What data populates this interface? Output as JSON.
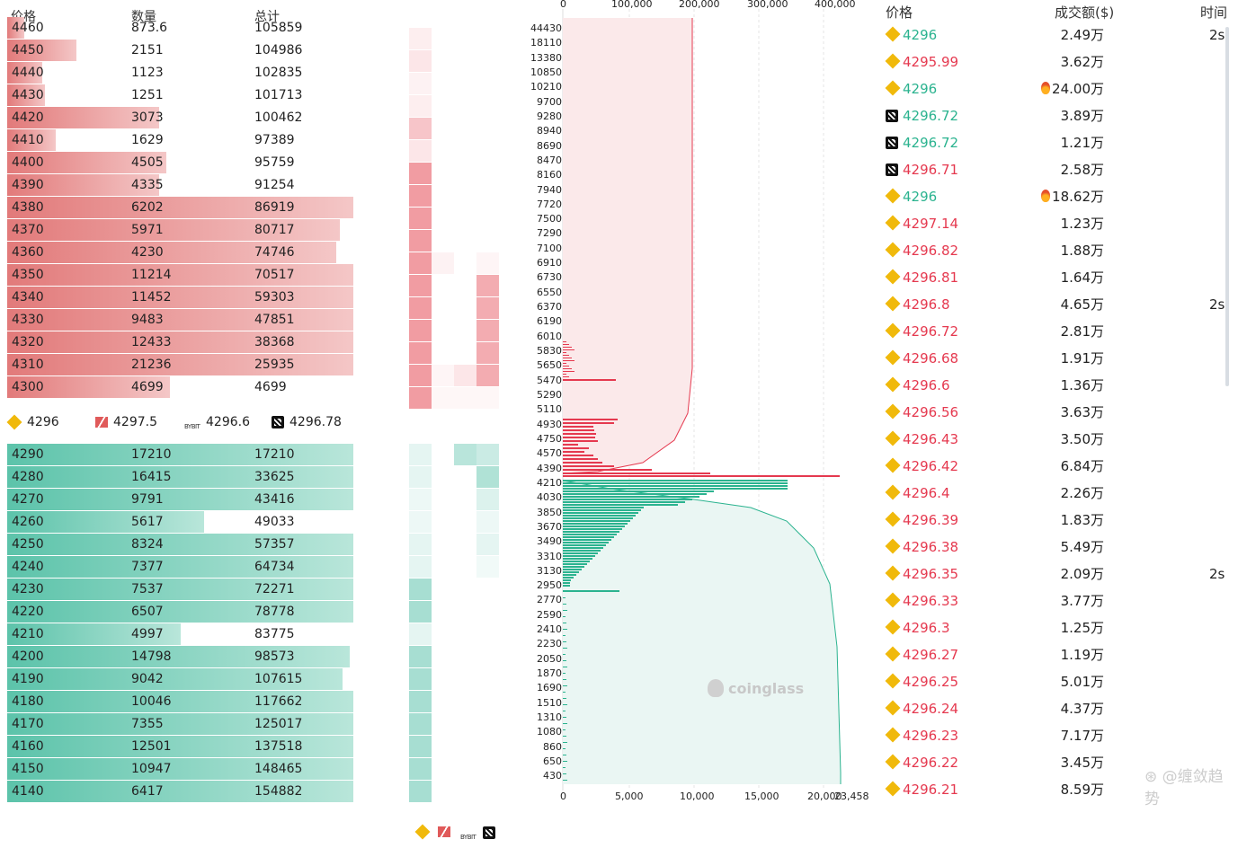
{
  "orderbook": {
    "headers": {
      "price": "价格",
      "qty": "数量",
      "total": "总计"
    },
    "asks": [
      {
        "price": "4460",
        "qty": "873.6",
        "total": "105859",
        "fill": 0.05
      },
      {
        "price": "4450",
        "qty": "2151",
        "total": "104986",
        "fill": 0.2
      },
      {
        "price": "4440",
        "qty": "1123",
        "total": "102835",
        "fill": 0.1
      },
      {
        "price": "4430",
        "qty": "1251",
        "total": "101713",
        "fill": 0.11
      },
      {
        "price": "4420",
        "qty": "3073",
        "total": "100462",
        "fill": 0.44
      },
      {
        "price": "4410",
        "qty": "1629",
        "total": "97389",
        "fill": 0.14
      },
      {
        "price": "4400",
        "qty": "4505",
        "total": "95759",
        "fill": 0.46
      },
      {
        "price": "4390",
        "qty": "4335",
        "total": "91254",
        "fill": 0.44
      },
      {
        "price": "4380",
        "qty": "6202",
        "total": "86919",
        "fill": 1.0
      },
      {
        "price": "4370",
        "qty": "5971",
        "total": "80717",
        "fill": 0.96
      },
      {
        "price": "4360",
        "qty": "4230",
        "total": "74746",
        "fill": 0.95
      },
      {
        "price": "4350",
        "qty": "11214",
        "total": "70517",
        "fill": 1.0
      },
      {
        "price": "4340",
        "qty": "11452",
        "total": "59303",
        "fill": 1.0
      },
      {
        "price": "4330",
        "qty": "9483",
        "total": "47851",
        "fill": 1.0
      },
      {
        "price": "4320",
        "qty": "12433",
        "total": "38368",
        "fill": 1.0
      },
      {
        "price": "4310",
        "qty": "21236",
        "total": "25935",
        "fill": 1.0
      },
      {
        "price": "4300",
        "qty": "4699",
        "total": "4699",
        "fill": 0.47
      }
    ],
    "mid_prices": [
      {
        "exchange": "binance-icon",
        "price": "4296"
      },
      {
        "exchange": "huobi-icon",
        "price": "4297.5"
      },
      {
        "exchange": "bybit-icon",
        "label": "BYBIT",
        "price": "4296.6"
      },
      {
        "exchange": "okx-icon",
        "price": "4296.78"
      }
    ],
    "bids": [
      {
        "price": "4290",
        "qty": "17210",
        "total": "17210",
        "fill": 1.0
      },
      {
        "price": "4280",
        "qty": "16415",
        "total": "33625",
        "fill": 1.0
      },
      {
        "price": "4270",
        "qty": "9791",
        "total": "43416",
        "fill": 1.0
      },
      {
        "price": "4260",
        "qty": "5617",
        "total": "49033",
        "fill": 0.57
      },
      {
        "price": "4250",
        "qty": "8324",
        "total": "57357",
        "fill": 1.0
      },
      {
        "price": "4240",
        "qty": "7377",
        "total": "64734",
        "fill": 1.0
      },
      {
        "price": "4230",
        "qty": "7537",
        "total": "72271",
        "fill": 1.0
      },
      {
        "price": "4220",
        "qty": "6507",
        "total": "78778",
        "fill": 1.0
      },
      {
        "price": "4210",
        "qty": "4997",
        "total": "83775",
        "fill": 0.5
      },
      {
        "price": "4200",
        "qty": "14798",
        "total": "98573",
        "fill": 0.99
      },
      {
        "price": "4190",
        "qty": "9042",
        "total": "107615",
        "fill": 0.97
      },
      {
        "price": "4180",
        "qty": "10046",
        "total": "117662",
        "fill": 1.0
      },
      {
        "price": "4170",
        "qty": "7355",
        "total": "125017",
        "fill": 1.0
      },
      {
        "price": "4160",
        "qty": "12501",
        "total": "137518",
        "fill": 1.0
      },
      {
        "price": "4150",
        "qty": "10947",
        "total": "148465",
        "fill": 1.0
      },
      {
        "price": "4140",
        "qty": "6417",
        "total": "154882",
        "fill": 1.0
      }
    ]
  },
  "depth_chart": {
    "top_axis": [
      "0",
      "100,000",
      "200,000",
      "300,000",
      "400,000"
    ],
    "bottom_axis": [
      "0",
      "5,000",
      "10,000",
      "15,000",
      "20,000",
      "23,458"
    ],
    "y_labels": [
      "44430",
      "18110",
      "13380",
      "10850",
      "10210",
      "9700",
      "9280",
      "8940",
      "8690",
      "8470",
      "8160",
      "7940",
      "7720",
      "7500",
      "7290",
      "7100",
      "6910",
      "6730",
      "6550",
      "6370",
      "6190",
      "6010",
      "5830",
      "5650",
      "5470",
      "5290",
      "5110",
      "4930",
      "4750",
      "4570",
      "4390",
      "4210",
      "4030",
      "3850",
      "3670",
      "3490",
      "3310",
      "3130",
      "2950",
      "2770",
      "2590",
      "2410",
      "2230",
      "2050",
      "1870",
      "1690",
      "1510",
      "1310",
      "1080",
      "860",
      "650",
      "430"
    ],
    "watermark": "coinglass",
    "colors": {
      "ask": "#e5394f",
      "bid": "#2bb38f"
    }
  },
  "trades": {
    "headers": {
      "price": "价格",
      "amount": "成交额($)",
      "time": "时间"
    },
    "rows": [
      {
        "ex": "binance-icon",
        "price": "4296",
        "dir": "up",
        "amount": "2.49万",
        "time": "2s"
      },
      {
        "ex": "binance-icon",
        "price": "4295.99",
        "dir": "dn",
        "amount": "3.62万",
        "time": ""
      },
      {
        "ex": "binance-icon",
        "price": "4296",
        "dir": "up",
        "amount": "24.00万",
        "fire": true,
        "time": ""
      },
      {
        "ex": "okx-icon",
        "price": "4296.72",
        "dir": "up",
        "amount": "3.89万",
        "time": ""
      },
      {
        "ex": "okx-icon",
        "price": "4296.72",
        "dir": "up",
        "amount": "1.21万",
        "time": ""
      },
      {
        "ex": "okx-icon",
        "price": "4296.71",
        "dir": "dn",
        "amount": "2.58万",
        "time": ""
      },
      {
        "ex": "binance-icon",
        "price": "4296",
        "dir": "up",
        "amount": "18.62万",
        "fire": true,
        "time": ""
      },
      {
        "ex": "binance-icon",
        "price": "4297.14",
        "dir": "dn",
        "amount": "1.23万",
        "time": ""
      },
      {
        "ex": "binance-icon",
        "price": "4296.82",
        "dir": "dn",
        "amount": "1.88万",
        "time": ""
      },
      {
        "ex": "binance-icon",
        "price": "4296.81",
        "dir": "dn",
        "amount": "1.64万",
        "time": ""
      },
      {
        "ex": "binance-icon",
        "price": "4296.8",
        "dir": "dn",
        "amount": "4.65万",
        "time": "2s"
      },
      {
        "ex": "binance-icon",
        "price": "4296.72",
        "dir": "dn",
        "amount": "2.81万",
        "time": ""
      },
      {
        "ex": "binance-icon",
        "price": "4296.68",
        "dir": "dn",
        "amount": "1.91万",
        "time": ""
      },
      {
        "ex": "binance-icon",
        "price": "4296.6",
        "dir": "dn",
        "amount": "1.36万",
        "time": ""
      },
      {
        "ex": "binance-icon",
        "price": "4296.56",
        "dir": "dn",
        "amount": "3.63万",
        "time": ""
      },
      {
        "ex": "binance-icon",
        "price": "4296.43",
        "dir": "dn",
        "amount": "3.50万",
        "time": ""
      },
      {
        "ex": "binance-icon",
        "price": "4296.42",
        "dir": "dn",
        "amount": "6.84万",
        "time": ""
      },
      {
        "ex": "binance-icon",
        "price": "4296.4",
        "dir": "dn",
        "amount": "2.26万",
        "time": ""
      },
      {
        "ex": "binance-icon",
        "price": "4296.39",
        "dir": "dn",
        "amount": "1.83万",
        "time": ""
      },
      {
        "ex": "binance-icon",
        "price": "4296.38",
        "dir": "dn",
        "amount": "5.49万",
        "time": ""
      },
      {
        "ex": "binance-icon",
        "price": "4296.35",
        "dir": "dn",
        "amount": "2.09万",
        "time": "2s"
      },
      {
        "ex": "binance-icon",
        "price": "4296.33",
        "dir": "dn",
        "amount": "3.77万",
        "time": ""
      },
      {
        "ex": "binance-icon",
        "price": "4296.3",
        "dir": "dn",
        "amount": "1.25万",
        "time": ""
      },
      {
        "ex": "binance-icon",
        "price": "4296.27",
        "dir": "dn",
        "amount": "1.19万",
        "time": ""
      },
      {
        "ex": "binance-icon",
        "price": "4296.25",
        "dir": "dn",
        "amount": "5.01万",
        "time": ""
      },
      {
        "ex": "binance-icon",
        "price": "4296.24",
        "dir": "dn",
        "amount": "4.37万",
        "time": ""
      },
      {
        "ex": "binance-icon",
        "price": "4296.23",
        "dir": "dn",
        "amount": "7.17万",
        "time": ""
      },
      {
        "ex": "binance-icon",
        "price": "4296.22",
        "dir": "dn",
        "amount": "3.45万",
        "time": ""
      },
      {
        "ex": "binance-icon",
        "price": "4296.21",
        "dir": "dn",
        "amount": "8.59万",
        "time": ""
      }
    ],
    "watermark": "缠敛趋势"
  }
}
